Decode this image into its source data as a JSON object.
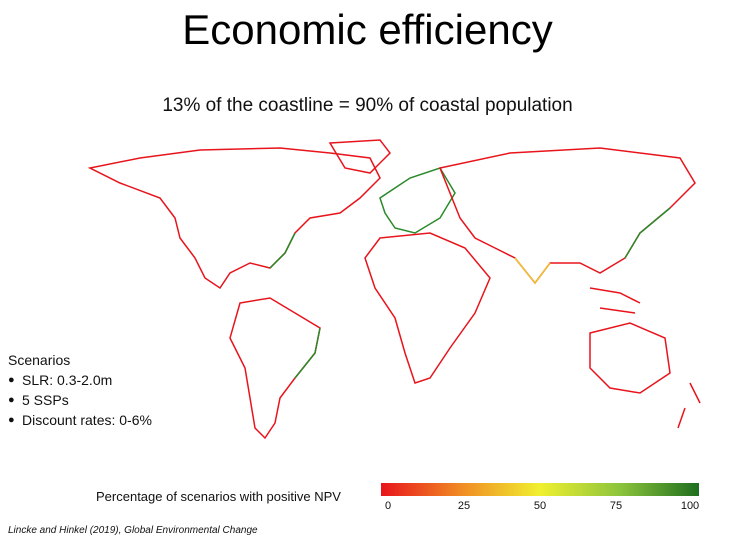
{
  "title": "Economic efficiency",
  "subtitle": "13% of the coastline = 90% of coastal population",
  "scenarios": {
    "heading": "Scenarios",
    "items": [
      "SLR: 0.3-2.0m",
      "5 SSPs",
      "Discount rates: 0-6%"
    ]
  },
  "legend": {
    "label": "Percentage of scenarios with positive NPV",
    "ticks": [
      "0",
      "25",
      "50",
      "75",
      "100"
    ],
    "colors": [
      "#e8141c",
      "#f08a24",
      "#f0f030",
      "#8cc43c",
      "#1e6e1e"
    ]
  },
  "citation": "Lincke and Hinkel (2019), Global Environmental Change",
  "map_colors": {
    "coast_low": "#e8141c",
    "coast_high": "#2a8a2a",
    "coast_mid": "#f0c030",
    "borders": "#c8c8c8"
  }
}
